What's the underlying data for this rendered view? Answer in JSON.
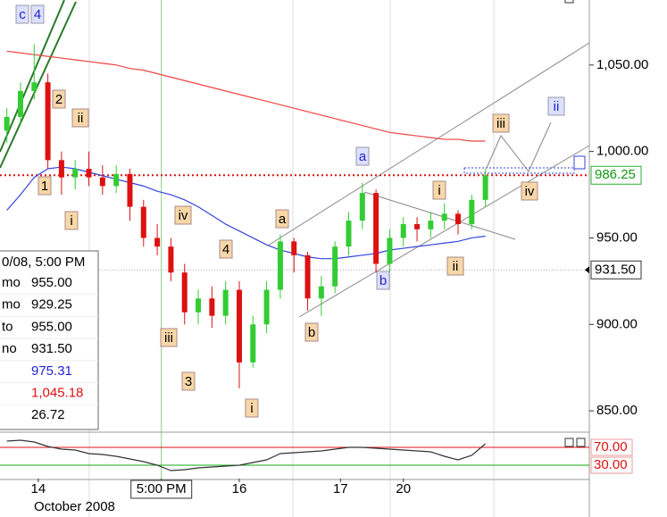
{
  "chart_data": {
    "type": "candlestick",
    "open": [
      1012,
      1020,
      1035,
      1040,
      995,
      985,
      990,
      985,
      980,
      987,
      968,
      950,
      945,
      930,
      907,
      915,
      905,
      920,
      878,
      900,
      920,
      948,
      940,
      915,
      922,
      945,
      960,
      976,
      935,
      950,
      958,
      955,
      960,
      964,
      958,
      972
    ],
    "high": [
      1025,
      1040,
      1062,
      1045,
      1000,
      995,
      1000,
      992,
      992,
      990,
      972,
      958,
      950,
      935,
      920,
      922,
      925,
      925,
      905,
      925,
      952,
      950,
      942,
      928,
      948,
      965,
      982,
      978,
      955,
      962,
      962,
      965,
      970,
      966,
      975,
      990
    ],
    "low": [
      1005,
      1015,
      1030,
      990,
      975,
      978,
      980,
      975,
      976,
      960,
      945,
      940,
      925,
      900,
      900,
      898,
      900,
      863,
      875,
      895,
      915,
      930,
      908,
      905,
      918,
      940,
      955,
      930,
      930,
      945,
      948,
      950,
      955,
      952,
      955,
      968
    ],
    "close": [
      1020,
      1035,
      1040,
      995,
      985,
      990,
      985,
      980,
      987,
      968,
      950,
      945,
      930,
      907,
      915,
      905,
      920,
      878,
      900,
      920,
      948,
      940,
      915,
      922,
      945,
      960,
      976,
      935,
      950,
      958,
      955,
      960,
      964,
      958,
      972,
      986.25
    ],
    "up_color": "#33cc33",
    "down_color": "#dd1111",
    "xlim": [
      -0.5,
      42.6
    ],
    "xticks": [
      {
        "value": 2.3,
        "label": "14"
      },
      {
        "value": 11.3,
        "label": "5:00 PM"
      },
      {
        "value": 17,
        "label": "16"
      },
      {
        "value": 24.4,
        "label": "17"
      },
      {
        "value": 29,
        "label": "20"
      }
    ],
    "x_label": "October 2008",
    "ylim": [
      838.7,
      1087.6
    ],
    "yticks": [
      {
        "value": 850,
        "label": "850.00"
      },
      {
        "value": 900,
        "label": "900.00"
      },
      {
        "value": 950,
        "label": "950.00"
      },
      {
        "value": 1000,
        "label": "1,000.00"
      },
      {
        "value": 1050,
        "label": "1,050.00"
      }
    ],
    "y2lim": [
      0,
      100
    ],
    "y2ticks": [
      {
        "value": 70,
        "label": "70.00"
      },
      {
        "value": 30,
        "label": "30.00"
      }
    ],
    "series": [
      {
        "color": "#ee4444",
        "values": [
          1058,
          1057,
          1056,
          1055,
          1054,
          1053,
          1052,
          1051,
          1050,
          1048,
          1047,
          1045,
          1043,
          1041,
          1039,
          1037,
          1035,
          1033,
          1031,
          1029,
          1027,
          1025,
          1023,
          1021,
          1019,
          1017,
          1015,
          1013,
          1011,
          1010,
          1009,
          1008,
          1007,
          1007,
          1006,
          1006
        ]
      },
      {
        "color": "#3344dd",
        "values": [
          966,
          975,
          985,
          990,
          991,
          990,
          988,
          986,
          984,
          982,
          980,
          977,
          975,
          972,
          968,
          963,
          958,
          954,
          950,
          946,
          943,
          941,
          939,
          938,
          938,
          939,
          940,
          941,
          943,
          944,
          945,
          946,
          947,
          948,
          950,
          951
        ]
      },
      {
        "color": "#333333",
        "axis": "y2",
        "values": [
          84,
          86,
          82,
          72,
          66,
          64,
          56,
          54,
          50,
          44,
          38,
          30,
          18,
          20,
          24,
          26,
          28,
          30,
          36,
          42,
          56,
          58,
          60,
          62,
          66,
          70,
          70,
          68,
          66,
          64,
          62,
          60,
          50,
          42,
          52,
          78
        ]
      }
    ],
    "last_price": {
      "value": 986.25,
      "label": "986.25"
    },
    "cursor_price": {
      "value": 931.5,
      "label": "931.50"
    },
    "annotations": [
      {
        "text": "c",
        "style": "blue"
      },
      {
        "text": "4",
        "style": "blue"
      },
      {
        "text": "2",
        "style": "tan"
      },
      {
        "text": "ii",
        "style": "tan"
      },
      {
        "text": "1",
        "style": "tan"
      },
      {
        "text": "i",
        "style": "tan"
      },
      {
        "text": "iv",
        "style": "tan"
      },
      {
        "text": "4",
        "style": "tan"
      },
      {
        "text": "iii",
        "style": "tan"
      },
      {
        "text": "3",
        "style": "tan"
      },
      {
        "text": "i",
        "style": "tan"
      },
      {
        "text": "a",
        "style": "tan"
      },
      {
        "text": "b",
        "style": "tan"
      },
      {
        "text": "a",
        "style": "blue"
      },
      {
        "text": "b",
        "style": "blue"
      },
      {
        "text": "i",
        "style": "tan"
      },
      {
        "text": "ii",
        "style": "tan"
      },
      {
        "text": "iii",
        "style": "tan"
      },
      {
        "text": "iv",
        "style": "tan"
      },
      {
        "text": "ii",
        "style": "blue"
      }
    ],
    "info_box": {
      "title": "0/08, 5:00 PM",
      "rows": [
        {
          "label": "mo",
          "value": "955.00",
          "color": "#000000"
        },
        {
          "label": "mo",
          "value": "929.25",
          "color": "#000000"
        },
        {
          "label": "to",
          "value": "955.00",
          "color": "#000000"
        },
        {
          "label": "no",
          "value": "931.50",
          "color": "#000000"
        },
        {
          "value": "975.31",
          "color": "#2222dd"
        },
        {
          "value": "1,045.18",
          "color": "#dd1111"
        },
        {
          "value": "26.72",
          "color": "#000000"
        }
      ]
    }
  }
}
